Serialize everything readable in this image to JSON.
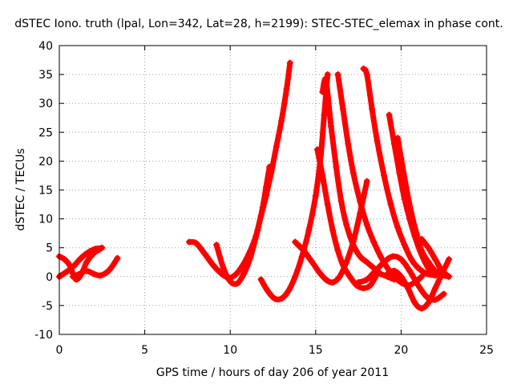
{
  "chart_data": {
    "type": "scatter",
    "title": "dSTEC Iono. truth (lpal, Lon=342, Lat=28, h=2199): STEC-STEC_elemax in phase cont.",
    "xlabel": "GPS time / hours of day 206 of year 2011",
    "ylabel": "dSTEC / TECUs",
    "xlim": [
      0,
      25
    ],
    "ylim": [
      -10,
      40
    ],
    "xticks": [
      0,
      5,
      10,
      15,
      20,
      25
    ],
    "yticks": [
      -10,
      -5,
      0,
      5,
      10,
      15,
      20,
      25,
      30,
      35,
      40
    ],
    "grid": true,
    "marker": "plus",
    "color": "#ff0000",
    "series": [
      {
        "x": [
          0.0,
          0.3,
          0.6,
          0.9,
          1.2,
          1.5,
          1.8,
          2.1,
          2.5
        ],
        "y": [
          0.0,
          0.6,
          1.2,
          2.0,
          3.0,
          3.8,
          4.4,
          4.8,
          5.0
        ]
      },
      {
        "x": [
          0.0,
          0.3,
          0.6,
          0.8,
          1.0,
          1.3,
          1.6,
          2.0,
          2.4
        ],
        "y": [
          3.5,
          3.0,
          2.0,
          0.5,
          -0.5,
          0.5,
          2.5,
          4.0,
          4.8
        ]
      },
      {
        "x": [
          0.8,
          1.2,
          1.6,
          2.0,
          2.4,
          2.8,
          3.1,
          3.4
        ],
        "y": [
          0.0,
          0.5,
          1.0,
          0.5,
          0.2,
          0.8,
          1.8,
          3.2
        ]
      },
      {
        "x": [
          7.6,
          8.0,
          8.5,
          9.0,
          9.5,
          9.9,
          10.3,
          10.7,
          11.1,
          11.5,
          11.8,
          12.1,
          12.4,
          12.7,
          13.0,
          13.3,
          13.5
        ],
        "y": [
          6.0,
          5.8,
          4.0,
          2.0,
          0.5,
          -0.2,
          0.3,
          1.8,
          4.0,
          7.0,
          10.5,
          14.0,
          18.0,
          22.5,
          27.0,
          32.5,
          37.0
        ]
      },
      {
        "x": [
          9.2,
          9.6,
          10.0,
          10.4,
          10.8,
          11.2,
          11.6,
          11.9,
          12.1,
          12.3
        ],
        "y": [
          5.5,
          1.5,
          -0.8,
          -1.2,
          0.5,
          3.5,
          8.0,
          12.0,
          15.5,
          19.0
        ]
      },
      {
        "x": [
          11.8,
          12.2,
          12.6,
          13.0,
          13.4,
          13.8,
          14.2,
          14.6,
          15.0,
          15.3,
          15.5,
          15.7
        ],
        "y": [
          -0.5,
          -2.5,
          -3.8,
          -3.8,
          -2.5,
          0.0,
          3.5,
          8.0,
          14.0,
          21.0,
          28.0,
          35.0
        ]
      },
      {
        "x": [
          13.8,
          14.3,
          14.8,
          15.2,
          15.6,
          16.0,
          16.4,
          16.8,
          17.2,
          17.6,
          18.0
        ],
        "y": [
          6.0,
          4.5,
          2.5,
          0.8,
          -0.5,
          -1.0,
          0.0,
          2.5,
          6.0,
          11.0,
          16.5
        ]
      },
      {
        "x": [
          15.1,
          15.4,
          15.7,
          16.0,
          16.3,
          16.6,
          17.0,
          17.4,
          17.8,
          18.2,
          18.6
        ],
        "y": [
          22.0,
          17.5,
          12.5,
          8.0,
          4.5,
          2.0,
          0.0,
          -1.5,
          -2.0,
          -1.5,
          0.5
        ]
      },
      {
        "x": [
          15.4,
          15.6,
          15.9,
          16.2,
          16.5,
          16.8,
          17.2,
          17.6,
          18.0,
          18.4,
          18.8,
          19.2,
          19.6
        ],
        "y": [
          32.0,
          34.0,
          26.0,
          19.0,
          13.0,
          9.0,
          5.5,
          3.5,
          2.5,
          1.5,
          0.5,
          0.0,
          -0.5
        ]
      },
      {
        "x": [
          16.3,
          16.6,
          16.9,
          17.2,
          17.6,
          18.0,
          18.4,
          18.8,
          19.2,
          19.6,
          20.0,
          20.4,
          20.8,
          21.2
        ],
        "y": [
          35.0,
          29.0,
          23.0,
          18.0,
          13.0,
          9.0,
          6.0,
          3.5,
          1.5,
          0.0,
          -1.0,
          -1.5,
          -1.0,
          0.0
        ]
      },
      {
        "x": [
          17.8,
          18.0,
          18.3,
          18.6,
          19.0,
          19.4,
          19.8,
          20.2,
          20.6,
          21.0,
          21.5,
          22.0
        ],
        "y": [
          36.0,
          35.0,
          29.0,
          23.5,
          17.5,
          12.5,
          8.5,
          5.5,
          3.0,
          1.5,
          0.5,
          0.2
        ]
      },
      {
        "x": [
          19.2,
          19.6,
          20.0,
          20.4,
          20.8,
          21.2,
          21.6,
          22.0,
          22.4,
          22.8
        ],
        "y": [
          0.5,
          1.0,
          0.0,
          -2.0,
          -4.5,
          -5.5,
          -4.5,
          -2.0,
          0.5,
          3.0
        ]
      },
      {
        "x": [
          19.3,
          19.6,
          19.9,
          20.2,
          20.5,
          20.8,
          21.1,
          21.4,
          21.7,
          22.0
        ],
        "y": [
          28.0,
          23.0,
          18.0,
          13.5,
          10.0,
          7.0,
          4.5,
          2.5,
          1.0,
          0.5
        ]
      },
      {
        "x": [
          19.8,
          20.0,
          20.3,
          20.6,
          20.9,
          21.2,
          21.6,
          22.0,
          22.4,
          22.8
        ],
        "y": [
          24.0,
          20.5,
          15.5,
          11.0,
          7.5,
          4.5,
          2.5,
          1.0,
          0.3,
          0.0
        ]
      },
      {
        "x": [
          17.5,
          18.0,
          18.5,
          19.0,
          19.5,
          20.0,
          20.5,
          21.0,
          21.5,
          22.0,
          22.5
        ],
        "y": [
          -1.0,
          -0.5,
          1.0,
          2.5,
          3.5,
          3.0,
          1.0,
          -1.5,
          -3.5,
          -4.0,
          -3.0
        ]
      },
      {
        "x": [
          21.2,
          21.6,
          22.0,
          22.4,
          22.8
        ],
        "y": [
          6.5,
          5.0,
          3.0,
          1.0,
          0.0
        ]
      }
    ]
  }
}
